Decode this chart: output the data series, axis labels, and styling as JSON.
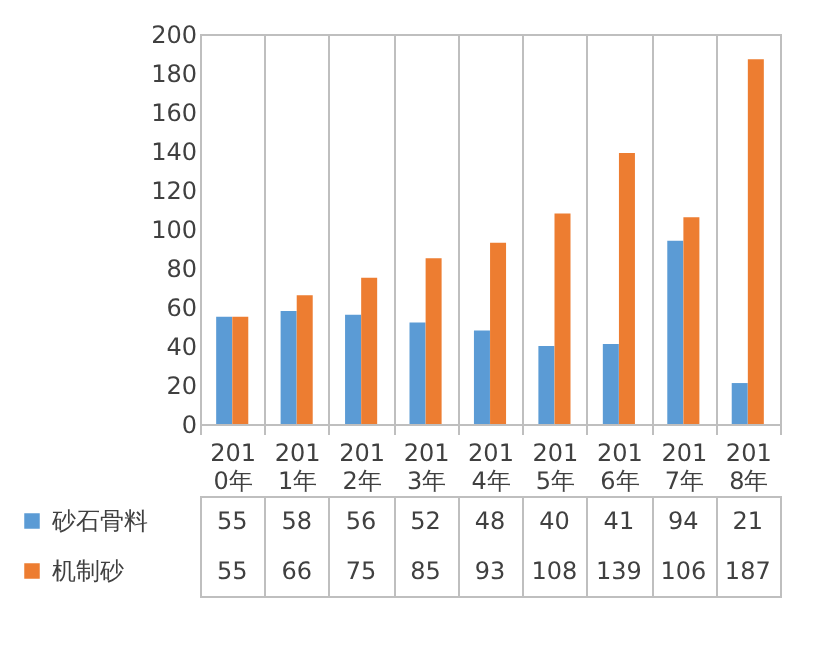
{
  "chart_data": {
    "type": "bar",
    "categories": [
      "2010年",
      "2011年",
      "2012年",
      "2013年",
      "2014年",
      "2015年",
      "2016年",
      "2017年",
      "2018年"
    ],
    "series": [
      {
        "name": "砂石骨料",
        "color": "#5b9bd5",
        "values": [
          55,
          58,
          56,
          52,
          48,
          40,
          41,
          94,
          21
        ]
      },
      {
        "name": "机制砂",
        "color": "#ed7d31",
        "values": [
          55,
          66,
          75,
          85,
          93,
          108,
          139,
          106,
          187
        ]
      }
    ],
    "ylim": [
      0,
      200
    ],
    "yticks": [
      0,
      20,
      40,
      60,
      80,
      100,
      120,
      140,
      160,
      180,
      200
    ],
    "grid": false,
    "legend": "bottom",
    "data_labels": true
  }
}
